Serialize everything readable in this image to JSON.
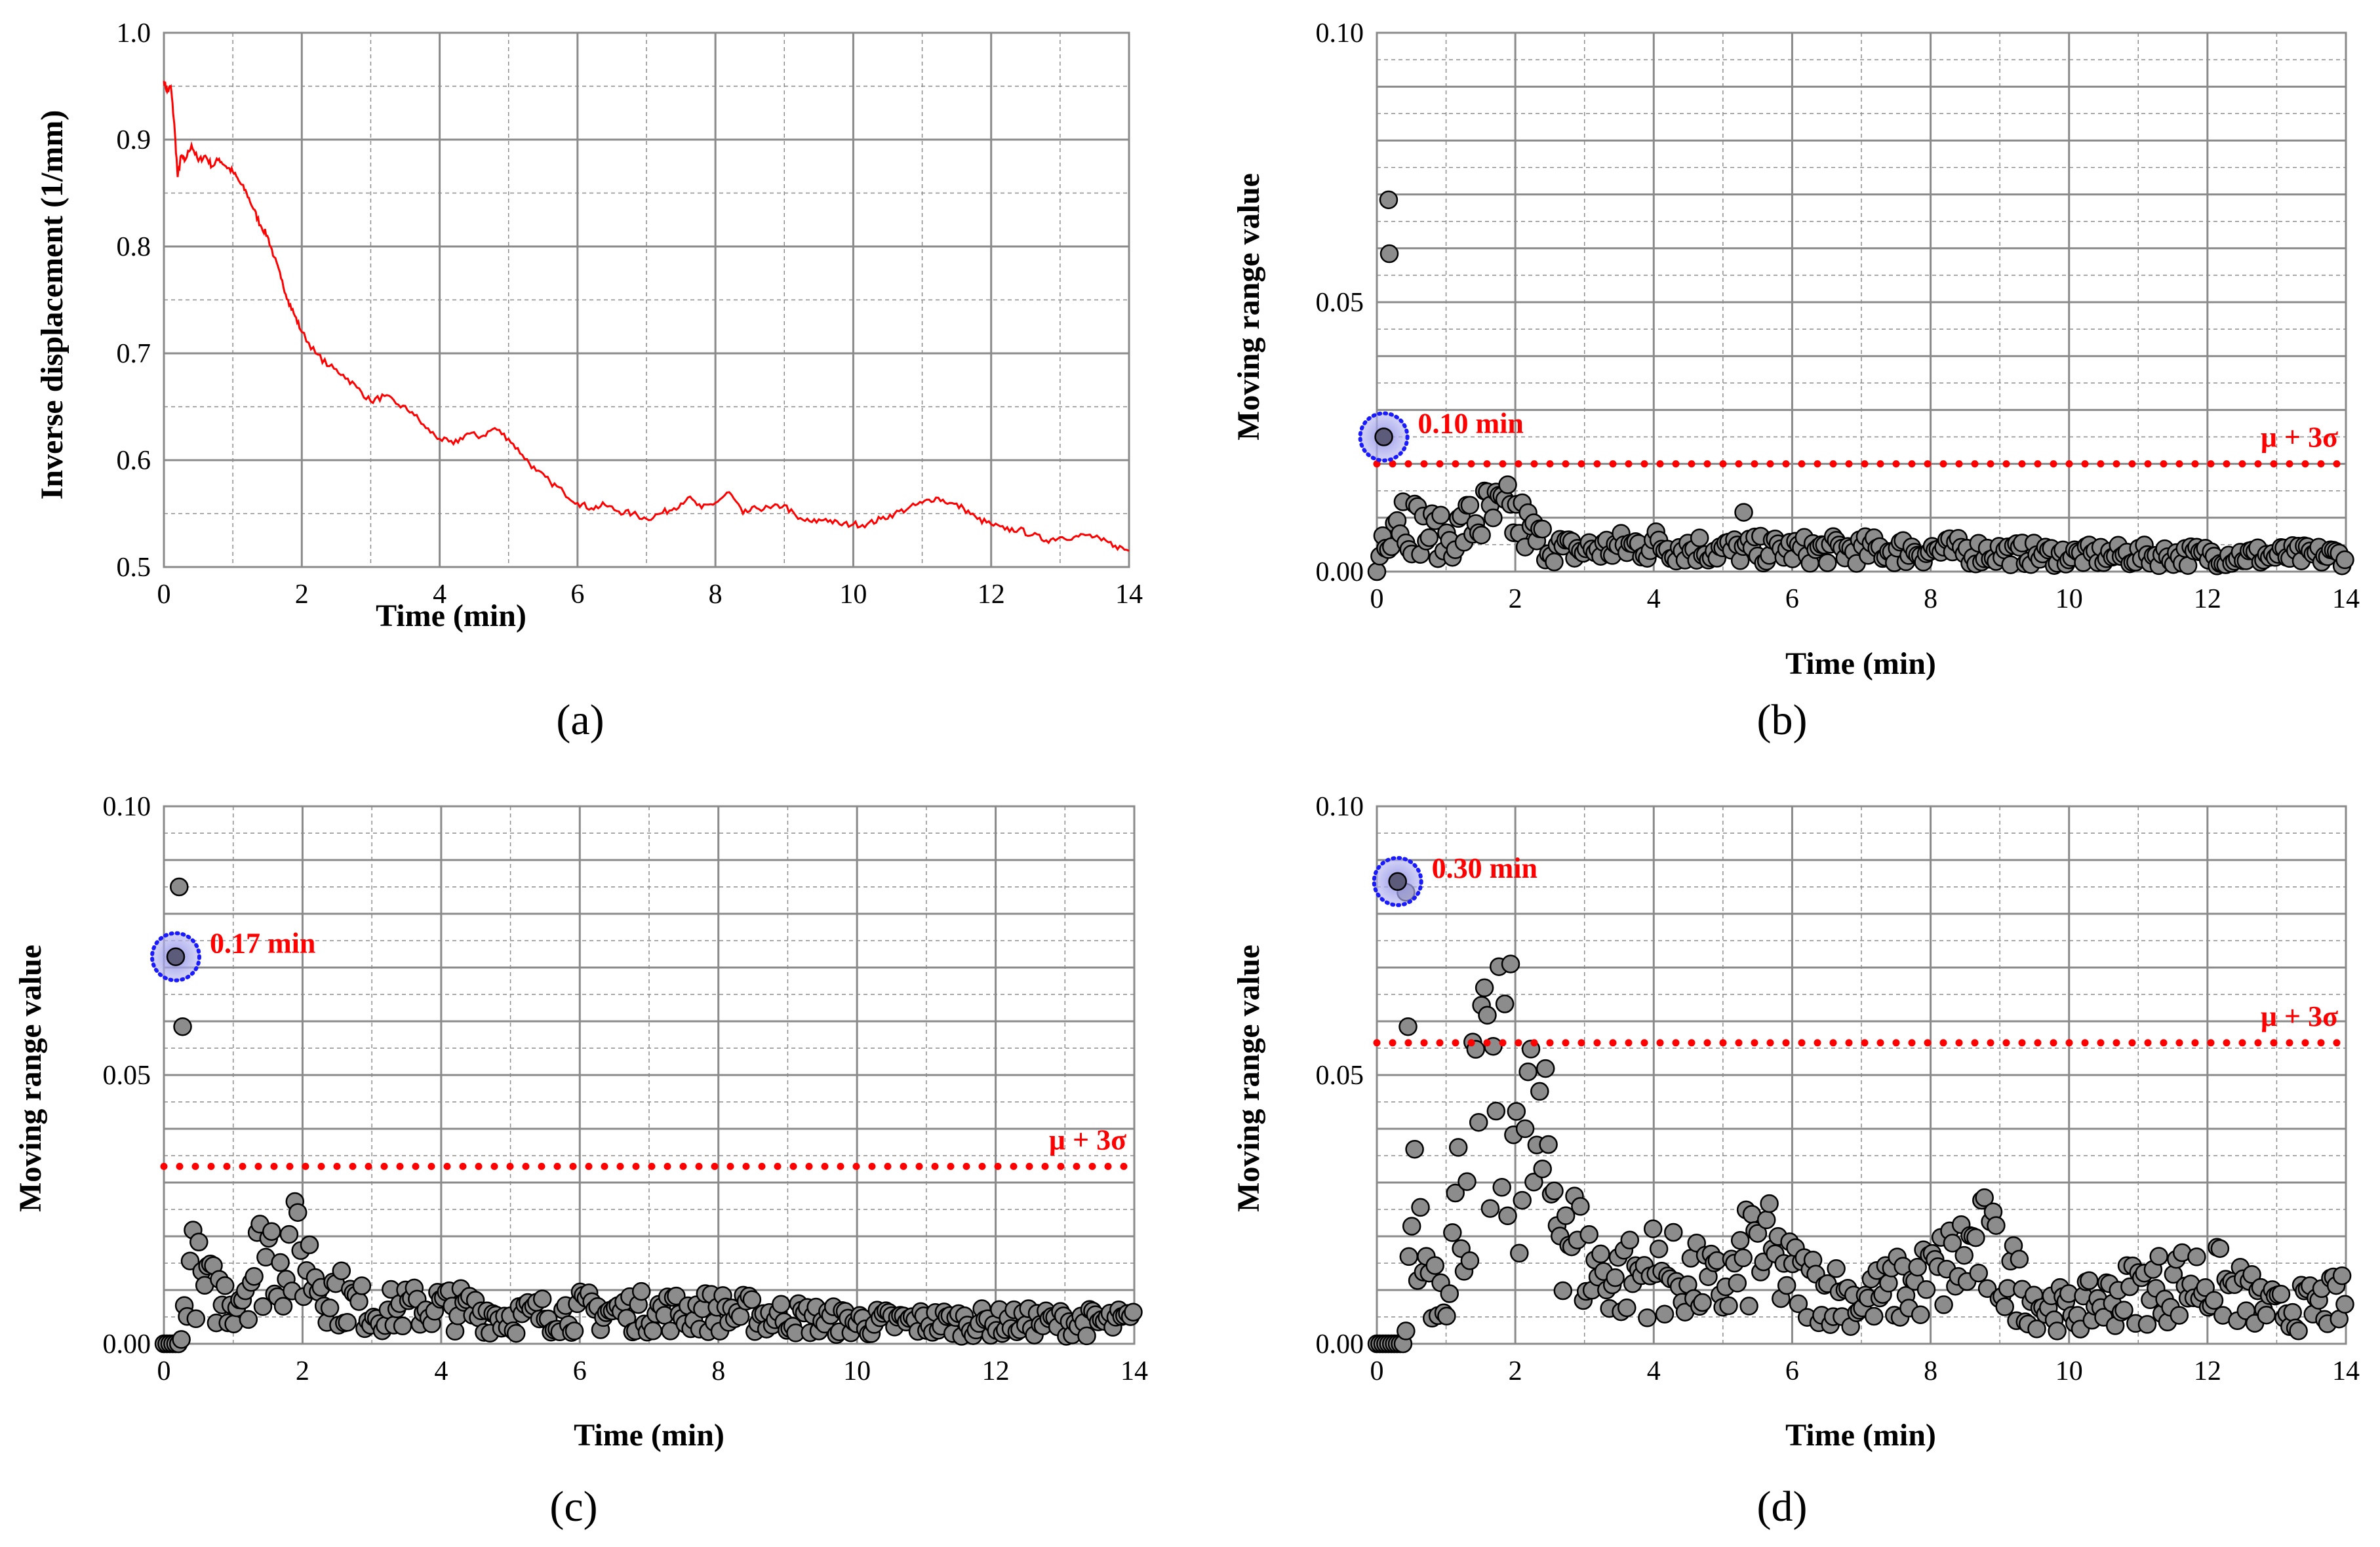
{
  "chart_data": [
    {
      "panel": "a",
      "panel_label": "(a)",
      "type": "line",
      "xlabel": "Time (min)",
      "ylabel": "Inverse displacement (1/mm)",
      "xlim": [
        0,
        14
      ],
      "ylim": [
        0.5,
        1.0
      ],
      "xticks": [
        "0",
        "2",
        "4",
        "6",
        "8",
        "10",
        "12",
        "14"
      ],
      "yticks": [
        "0.5",
        "0.6",
        "0.7",
        "0.8",
        "0.9",
        "1.0"
      ],
      "grid": true,
      "series_color": "#ff0000",
      "series": [
        {
          "name": "inverse displacement",
          "x": [
            0,
            0.05,
            0.1,
            0.15,
            0.2,
            0.25,
            0.3,
            0.4,
            0.5,
            0.6,
            0.7,
            0.8,
            0.9,
            1.0,
            1.1,
            1.2,
            1.3,
            1.4,
            1.5,
            1.6,
            1.7,
            1.8,
            1.9,
            2.0,
            2.2,
            2.4,
            2.6,
            2.8,
            3.0,
            3.2,
            3.4,
            3.6,
            3.8,
            4.0,
            4.2,
            4.4,
            4.6,
            4.8,
            5.0,
            5.2,
            5.4,
            5.6,
            5.8,
            6.0,
            6.2,
            6.4,
            6.6,
            6.8,
            7.0,
            7.2,
            7.4,
            7.6,
            7.8,
            8.0,
            8.2,
            8.4,
            8.6,
            8.8,
            9.0,
            9.2,
            9.4,
            9.6,
            9.8,
            10.0,
            10.2,
            10.4,
            10.6,
            10.8,
            11.0,
            11.2,
            11.4,
            11.6,
            11.8,
            12.0,
            12.2,
            12.4,
            12.6,
            12.8,
            13.0,
            13.2,
            13.4,
            13.6,
            13.8,
            14.0
          ],
          "y": [
            0.955,
            0.945,
            0.95,
            0.915,
            0.865,
            0.885,
            0.88,
            0.895,
            0.88,
            0.885,
            0.875,
            0.882,
            0.875,
            0.87,
            0.86,
            0.85,
            0.835,
            0.82,
            0.81,
            0.79,
            0.77,
            0.75,
            0.735,
            0.72,
            0.7,
            0.688,
            0.68,
            0.668,
            0.655,
            0.66,
            0.652,
            0.645,
            0.63,
            0.62,
            0.615,
            0.625,
            0.622,
            0.63,
            0.62,
            0.605,
            0.59,
            0.58,
            0.57,
            0.56,
            0.555,
            0.558,
            0.552,
            0.55,
            0.545,
            0.55,
            0.555,
            0.565,
            0.555,
            0.56,
            0.57,
            0.55,
            0.555,
            0.555,
            0.558,
            0.545,
            0.542,
            0.545,
            0.54,
            0.54,
            0.54,
            0.545,
            0.55,
            0.555,
            0.56,
            0.565,
            0.56,
            0.555,
            0.545,
            0.54,
            0.535,
            0.535,
            0.53,
            0.525,
            0.528,
            0.528,
            0.53,
            0.525,
            0.52,
            0.515
          ]
        }
      ]
    },
    {
      "panel": "b",
      "panel_label": "(b)",
      "type": "scatter",
      "xlabel": "Time (min)",
      "ylabel": "Moving range value",
      "xlim": [
        0,
        14
      ],
      "ylim": [
        0,
        0.1
      ],
      "xticks": [
        "0",
        "2",
        "4",
        "6",
        "8",
        "10",
        "12",
        "14"
      ],
      "yticks": [
        "0.00",
        "0.05",
        "0.10"
      ],
      "grid": true,
      "threshold": 0.02,
      "threshold_label": "μ + 3σ",
      "highlight": {
        "x": 0.1,
        "y": 0.025,
        "label": "0.10 min"
      },
      "outliers": [
        {
          "x": 0.17,
          "y": 0.069
        },
        {
          "x": 0.18,
          "y": 0.059
        },
        {
          "x": 5.3,
          "y": 0.011
        }
      ],
      "profile": {
        "x": [
          0,
          0.1,
          0.3,
          0.6,
          1.0,
          1.5,
          2.0,
          2.3,
          2.7,
          3.0,
          4.0,
          5.0,
          6.0,
          8.0,
          10.0,
          12.0,
          14.0
        ],
        "level": [
          0.0,
          0.008,
          0.012,
          0.008,
          0.006,
          0.01,
          0.01,
          0.006,
          0.004,
          0.004,
          0.005,
          0.004,
          0.004,
          0.004,
          0.003,
          0.003,
          0.003
        ]
      }
    },
    {
      "panel": "c",
      "panel_label": "(c)",
      "type": "scatter",
      "xlabel": "Time (min)",
      "ylabel": "Moving range value",
      "xlim": [
        0,
        14
      ],
      "ylim": [
        0,
        0.1
      ],
      "xticks": [
        "0",
        "2",
        "4",
        "6",
        "8",
        "10",
        "12",
        "14"
      ],
      "yticks": [
        "0.00",
        "0.05",
        "0.10"
      ],
      "grid": true,
      "threshold": 0.033,
      "threshold_label": "μ + 3σ",
      "highlight": {
        "x": 0.17,
        "y": 0.072,
        "label": "0.17 min"
      },
      "outliers": [
        {
          "x": 0.22,
          "y": 0.085
        },
        {
          "x": 0.27,
          "y": 0.059
        }
      ],
      "profile": {
        "x": [
          0,
          0.25,
          0.35,
          0.6,
          1.0,
          1.5,
          2.0,
          2.5,
          3.0,
          4.0,
          5.0,
          6.0,
          8.0,
          10.0,
          12.0,
          14.0
        ],
        "level": [
          0.0,
          0.0,
          0.015,
          0.01,
          0.008,
          0.018,
          0.016,
          0.009,
          0.006,
          0.007,
          0.005,
          0.006,
          0.006,
          0.004,
          0.004,
          0.004
        ]
      }
    },
    {
      "panel": "d",
      "panel_label": "(d)",
      "type": "scatter",
      "xlabel": "Time (min)",
      "ylabel": "Moving range value",
      "xlim": [
        0,
        14
      ],
      "ylim": [
        0,
        0.1
      ],
      "xticks": [
        "0",
        "2",
        "4",
        "6",
        "8",
        "10",
        "12",
        "14"
      ],
      "yticks": [
        "0.00",
        "0.05",
        "0.10"
      ],
      "grid": true,
      "threshold": 0.056,
      "threshold_label": "μ + 3σ",
      "highlight": {
        "x": 0.3,
        "y": 0.086,
        "label": "0.30 min"
      },
      "outliers": [
        {
          "x": 0.42,
          "y": 0.084
        },
        {
          "x": 0.45,
          "y": 0.059
        }
      ],
      "profile": {
        "x": [
          0,
          0.4,
          0.5,
          0.8,
          1.0,
          1.3,
          1.6,
          2.0,
          2.3,
          2.7,
          3.0,
          3.5,
          4.0,
          5.0,
          5.5,
          6.0,
          7.0,
          8.0,
          8.7,
          9.5,
          10.0,
          11.0,
          12.0,
          13.0,
          14.0
        ],
        "level": [
          0.0,
          0.0,
          0.025,
          0.012,
          0.012,
          0.035,
          0.042,
          0.044,
          0.035,
          0.025,
          0.015,
          0.012,
          0.014,
          0.01,
          0.018,
          0.012,
          0.008,
          0.012,
          0.018,
          0.008,
          0.006,
          0.01,
          0.012,
          0.006,
          0.008
        ]
      }
    }
  ]
}
